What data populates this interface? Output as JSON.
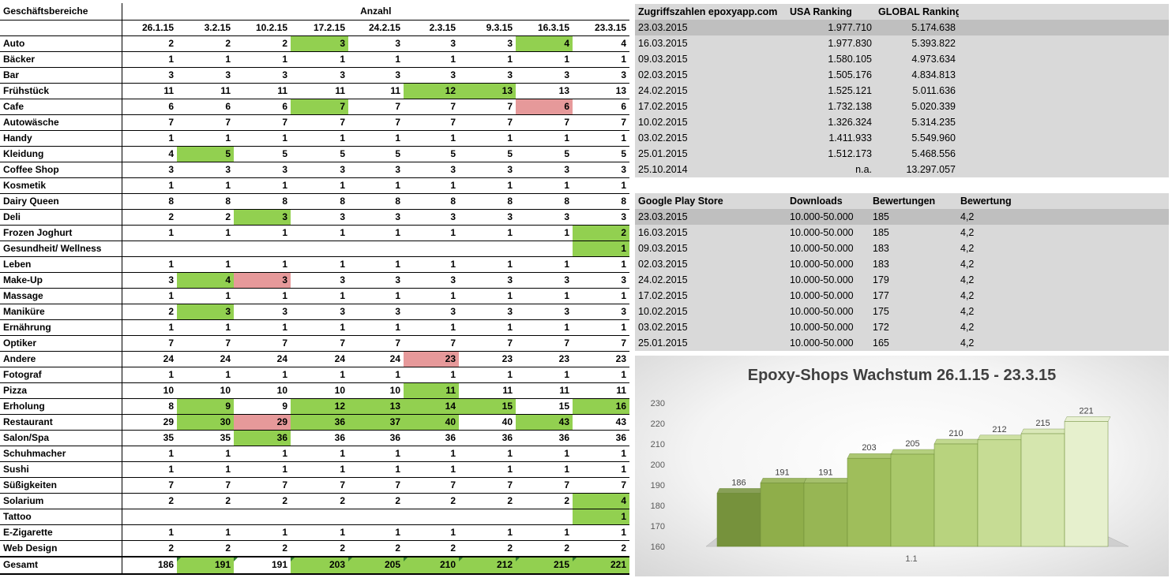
{
  "main_table": {
    "header_category": "Geschäftsbereiche",
    "header_anzahl": "Anzahl",
    "dates": [
      "26.1.15",
      "3.2.15",
      "10.2.15",
      "17.2.15",
      "24.2.15",
      "2.3.15",
      "9.3.15",
      "16.3.15",
      "23.3.15"
    ],
    "rows": [
      {
        "name": "Auto",
        "values": [
          "2",
          "2",
          "2",
          "3",
          "3",
          "3",
          "3",
          "4",
          "4"
        ],
        "hl": [
          "",
          "",
          "",
          "g",
          "",
          "",
          "",
          "g",
          ""
        ]
      },
      {
        "name": "Bäcker",
        "values": [
          "1",
          "1",
          "1",
          "1",
          "1",
          "1",
          "1",
          "1",
          "1"
        ],
        "hl": [
          "",
          "",
          "",
          "",
          "",
          "",
          "",
          "",
          ""
        ]
      },
      {
        "name": "Bar",
        "values": [
          "3",
          "3",
          "3",
          "3",
          "3",
          "3",
          "3",
          "3",
          "3"
        ],
        "hl": [
          "",
          "",
          "",
          "",
          "",
          "",
          "",
          "",
          ""
        ]
      },
      {
        "name": "Frühstück",
        "values": [
          "11",
          "11",
          "11",
          "11",
          "11",
          "12",
          "13",
          "13",
          "13"
        ],
        "hl": [
          "",
          "",
          "",
          "",
          "",
          "g",
          "g",
          "",
          ""
        ]
      },
      {
        "name": "Cafe",
        "values": [
          "6",
          "6",
          "6",
          "7",
          "7",
          "7",
          "7",
          "6",
          "6"
        ],
        "hl": [
          "",
          "",
          "",
          "g",
          "",
          "",
          "",
          "r",
          ""
        ]
      },
      {
        "name": "Autowäsche",
        "values": [
          "7",
          "7",
          "7",
          "7",
          "7",
          "7",
          "7",
          "7",
          "7"
        ],
        "hl": [
          "",
          "",
          "",
          "",
          "",
          "",
          "",
          "",
          ""
        ]
      },
      {
        "name": "Handy",
        "values": [
          "1",
          "1",
          "1",
          "1",
          "1",
          "1",
          "1",
          "1",
          "1"
        ],
        "hl": [
          "",
          "",
          "",
          "",
          "",
          "",
          "",
          "",
          ""
        ]
      },
      {
        "name": "Kleidung",
        "values": [
          "4",
          "5",
          "5",
          "5",
          "5",
          "5",
          "5",
          "5",
          "5"
        ],
        "hl": [
          "",
          "g",
          "",
          "",
          "",
          "",
          "",
          "",
          ""
        ]
      },
      {
        "name": "Coffee Shop",
        "values": [
          "3",
          "3",
          "3",
          "3",
          "3",
          "3",
          "3",
          "3",
          "3"
        ],
        "hl": [
          "",
          "",
          "",
          "",
          "",
          "",
          "",
          "",
          ""
        ]
      },
      {
        "name": "Kosmetik",
        "values": [
          "1",
          "1",
          "1",
          "1",
          "1",
          "1",
          "1",
          "1",
          "1"
        ],
        "hl": [
          "",
          "",
          "",
          "",
          "",
          "",
          "",
          "",
          ""
        ]
      },
      {
        "name": "Dairy Queen",
        "values": [
          "8",
          "8",
          "8",
          "8",
          "8",
          "8",
          "8",
          "8",
          "8"
        ],
        "hl": [
          "",
          "",
          "",
          "",
          "",
          "",
          "",
          "",
          ""
        ]
      },
      {
        "name": "Deli",
        "values": [
          "2",
          "2",
          "3",
          "3",
          "3",
          "3",
          "3",
          "3",
          "3"
        ],
        "hl": [
          "",
          "",
          "g",
          "",
          "",
          "",
          "",
          "",
          ""
        ]
      },
      {
        "name": "Frozen Joghurt",
        "values": [
          "1",
          "1",
          "1",
          "1",
          "1",
          "1",
          "1",
          "1",
          "2"
        ],
        "hl": [
          "",
          "",
          "",
          "",
          "",
          "",
          "",
          "",
          "g"
        ]
      },
      {
        "name": "Gesundheit/ Wellness",
        "values": [
          "",
          "",
          "",
          "",
          "",
          "",
          "",
          "",
          "1"
        ],
        "hl": [
          "",
          "",
          "",
          "",
          "",
          "",
          "",
          "",
          "g"
        ]
      },
      {
        "name": "Leben",
        "values": [
          "1",
          "1",
          "1",
          "1",
          "1",
          "1",
          "1",
          "1",
          "1"
        ],
        "hl": [
          "",
          "",
          "",
          "",
          "",
          "",
          "",
          "",
          ""
        ]
      },
      {
        "name": "Make-Up",
        "values": [
          "3",
          "4",
          "3",
          "3",
          "3",
          "3",
          "3",
          "3",
          "3"
        ],
        "hl": [
          "",
          "g",
          "r",
          "",
          "",
          "",
          "",
          "",
          ""
        ]
      },
      {
        "name": "Massage",
        "values": [
          "1",
          "1",
          "1",
          "1",
          "1",
          "1",
          "1",
          "1",
          "1"
        ],
        "hl": [
          "",
          "",
          "",
          "",
          "",
          "",
          "",
          "",
          ""
        ]
      },
      {
        "name": "Maniküre",
        "values": [
          "2",
          "3",
          "3",
          "3",
          "3",
          "3",
          "3",
          "3",
          "3"
        ],
        "hl": [
          "",
          "g",
          "",
          "",
          "",
          "",
          "",
          "",
          ""
        ]
      },
      {
        "name": "Ernährung",
        "values": [
          "1",
          "1",
          "1",
          "1",
          "1",
          "1",
          "1",
          "1",
          "1"
        ],
        "hl": [
          "",
          "",
          "",
          "",
          "",
          "",
          "",
          "",
          ""
        ]
      },
      {
        "name": "Optiker",
        "values": [
          "7",
          "7",
          "7",
          "7",
          "7",
          "7",
          "7",
          "7",
          "7"
        ],
        "hl": [
          "",
          "",
          "",
          "",
          "",
          "",
          "",
          "",
          ""
        ]
      },
      {
        "name": "Andere",
        "values": [
          "24",
          "24",
          "24",
          "24",
          "24",
          "23",
          "23",
          "23",
          "23"
        ],
        "hl": [
          "",
          "",
          "",
          "",
          "",
          "r",
          "",
          "",
          ""
        ]
      },
      {
        "name": "Fotograf",
        "values": [
          "1",
          "1",
          "1",
          "1",
          "1",
          "1",
          "1",
          "1",
          "1"
        ],
        "hl": [
          "",
          "",
          "",
          "",
          "",
          "",
          "",
          "",
          ""
        ]
      },
      {
        "name": "Pizza",
        "values": [
          "10",
          "10",
          "10",
          "10",
          "10",
          "11",
          "11",
          "11",
          "11"
        ],
        "hl": [
          "",
          "",
          "",
          "",
          "",
          "g",
          "",
          "",
          ""
        ]
      },
      {
        "name": "Erholung",
        "values": [
          "8",
          "9",
          "9",
          "12",
          "13",
          "14",
          "15",
          "15",
          "16"
        ],
        "hl": [
          "",
          "g",
          "",
          "g",
          "g",
          "g",
          "g",
          "",
          "g"
        ]
      },
      {
        "name": "Restaurant",
        "values": [
          "29",
          "30",
          "29",
          "36",
          "37",
          "40",
          "40",
          "43",
          "43"
        ],
        "hl": [
          "",
          "g",
          "r",
          "g",
          "g",
          "g",
          "",
          "g",
          ""
        ]
      },
      {
        "name": "Salon/Spa",
        "values": [
          "35",
          "35",
          "36",
          "36",
          "36",
          "36",
          "36",
          "36",
          "36"
        ],
        "hl": [
          "",
          "",
          "g",
          "",
          "",
          "",
          "",
          "",
          ""
        ]
      },
      {
        "name": "Schuhmacher",
        "values": [
          "1",
          "1",
          "1",
          "1",
          "1",
          "1",
          "1",
          "1",
          "1"
        ],
        "hl": [
          "",
          "",
          "",
          "",
          "",
          "",
          "",
          "",
          ""
        ]
      },
      {
        "name": "Sushi",
        "values": [
          "1",
          "1",
          "1",
          "1",
          "1",
          "1",
          "1",
          "1",
          "1"
        ],
        "hl": [
          "",
          "",
          "",
          "",
          "",
          "",
          "",
          "",
          ""
        ]
      },
      {
        "name": "Süßigkeiten",
        "values": [
          "7",
          "7",
          "7",
          "7",
          "7",
          "7",
          "7",
          "7",
          "7"
        ],
        "hl": [
          "",
          "",
          "",
          "",
          "",
          "",
          "",
          "",
          ""
        ]
      },
      {
        "name": "Solarium",
        "values": [
          "2",
          "2",
          "2",
          "2",
          "2",
          "2",
          "2",
          "2",
          "4"
        ],
        "hl": [
          "",
          "",
          "",
          "",
          "",
          "",
          "",
          "",
          "g"
        ]
      },
      {
        "name": "Tattoo",
        "values": [
          "",
          "",
          "",
          "",
          "",
          "",
          "",
          "",
          "1"
        ],
        "hl": [
          "",
          "",
          "",
          "",
          "",
          "",
          "",
          "",
          "g"
        ]
      },
      {
        "name": "E-Zigarette",
        "values": [
          "1",
          "1",
          "1",
          "1",
          "1",
          "1",
          "1",
          "1",
          "1"
        ],
        "hl": [
          "",
          "",
          "",
          "",
          "",
          "",
          "",
          "",
          ""
        ]
      },
      {
        "name": "Web Design",
        "values": [
          "2",
          "2",
          "2",
          "2",
          "2",
          "2",
          "2",
          "2",
          "2"
        ],
        "hl": [
          "",
          "",
          "",
          "",
          "",
          "",
          "",
          "",
          ""
        ]
      }
    ],
    "total": {
      "name": "Gesamt",
      "values": [
        "186",
        "191",
        "191",
        "203",
        "205",
        "210",
        "212",
        "215",
        "221"
      ],
      "hl": [
        "",
        "g",
        "",
        "g",
        "g",
        "g",
        "g",
        "g",
        "g"
      ]
    }
  },
  "zugriff_table": {
    "headers": [
      "Zugriffszahlen epoxyapp.com",
      "USA Ranking",
      "GLOBAL Ranking"
    ],
    "rows": [
      [
        "23.03.2015",
        "1.977.710",
        "5.174.638"
      ],
      [
        "16.03.2015",
        "1.977.830",
        "5.393.822"
      ],
      [
        "09.03.2015",
        "1.580.105",
        "4.973.634"
      ],
      [
        "02.03.2015",
        "1.505.176",
        "4.834.813"
      ],
      [
        "24.02.2015",
        "1.525.121",
        "5.011.636"
      ],
      [
        "17.02.2015",
        "1.732.138",
        "5.020.339"
      ],
      [
        "10.02.2015",
        "1.326.324",
        "5.314.235"
      ],
      [
        "03.02.2015",
        "1.411.933",
        "5.549.960"
      ],
      [
        "25.01.2015",
        "1.512.173",
        "5.468.556"
      ],
      [
        "25.10.2014",
        "n.a.",
        "13.297.057"
      ]
    ]
  },
  "play_table": {
    "headers": [
      "Google Play Store",
      "Downloads",
      "Bewertungen",
      "Bewertung"
    ],
    "rows": [
      [
        "23.03.2015",
        "10.000-50.000",
        "185",
        "4,2"
      ],
      [
        "16.03.2015",
        "10.000-50.000",
        "185",
        "4,2"
      ],
      [
        "09.03.2015",
        "10.000-50.000",
        "183",
        "4,2"
      ],
      [
        "02.03.2015",
        "10.000-50.000",
        "183",
        "4,2"
      ],
      [
        "24.02.2015",
        "10.000-50.000",
        "179",
        "4,2"
      ],
      [
        "17.02.2015",
        "10.000-50.000",
        "177",
        "4,2"
      ],
      [
        "10.02.2015",
        "10.000-50.000",
        "175",
        "4,2"
      ],
      [
        "03.02.2015",
        "10.000-50.000",
        "172",
        "4,2"
      ],
      [
        "25.01.2015",
        "10.000-50.000",
        "165",
        "4,2"
      ]
    ]
  },
  "chart_data": {
    "type": "bar",
    "title": "Epoxy-Shops Wachstum 26.1.15 - 23.3.15",
    "categories": [
      "1.1"
    ],
    "series": [
      {
        "name": "26.1.15",
        "values": [
          186
        ]
      },
      {
        "name": "3.2.15",
        "values": [
          191
        ]
      },
      {
        "name": "10.2.15",
        "values": [
          191
        ]
      },
      {
        "name": "17.2.15",
        "values": [
          203
        ]
      },
      {
        "name": "24.2.15",
        "values": [
          205
        ]
      },
      {
        "name": "2.3.15",
        "values": [
          210
        ]
      },
      {
        "name": "9.3.15",
        "values": [
          212
        ]
      },
      {
        "name": "16.3.15",
        "values": [
          215
        ]
      },
      {
        "name": "23.3.15",
        "values": [
          221
        ]
      }
    ],
    "ylim": [
      160,
      230
    ],
    "yticks": [
      "160",
      "170",
      "180",
      "190",
      "200",
      "210",
      "220",
      "230"
    ],
    "xlabel": "1.1",
    "colors": [
      "#76923c",
      "#8fae4a",
      "#97b654",
      "#9fbe5b",
      "#a9c86a",
      "#b8d37e",
      "#c6dc94",
      "#d5e6ae",
      "#e6f0cd"
    ]
  }
}
